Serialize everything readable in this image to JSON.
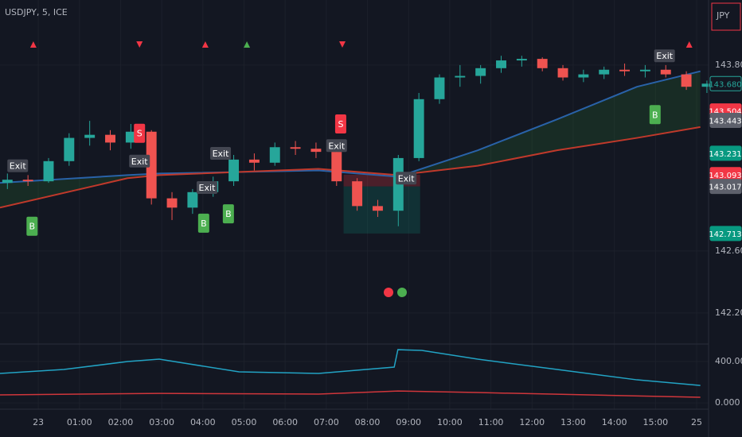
{
  "chart_data": {
    "type": "candlestick",
    "title": "USDJPY, 5, ICE",
    "currency_label": "JPY",
    "up_color": "#26a69a",
    "down_color": "#ef5350",
    "x": [
      -0.75,
      -0.25,
      0.25,
      0.75,
      1.25,
      1.75,
      2.25,
      2.75,
      3.25,
      3.75,
      4.25,
      4.75,
      5.25,
      5.75,
      6.25,
      6.75,
      7.25,
      7.75,
      8.25,
      8.75,
      9.25,
      9.75,
      10.25,
      10.75,
      11.25,
      11.75,
      12.25,
      12.75,
      13.25,
      13.75,
      14.25,
      14.75,
      15.25,
      15.75,
      16.25
    ],
    "open": [
      143.04,
      143.06,
      143.05,
      143.18,
      143.33,
      143.35,
      143.3,
      143.37,
      142.94,
      142.88,
      142.98,
      143.05,
      143.19,
      143.17,
      143.27,
      143.26,
      143.24,
      143.05,
      142.89,
      142.86,
      143.2,
      143.58,
      143.72,
      143.73,
      143.78,
      143.83,
      143.84,
      143.78,
      143.72,
      143.74,
      143.77,
      143.76,
      143.77,
      143.74,
      143.66
    ],
    "high": [
      143.1,
      143.09,
      143.2,
      143.36,
      143.44,
      143.38,
      143.42,
      143.38,
      142.98,
      143.0,
      143.08,
      143.22,
      143.23,
      143.3,
      143.31,
      143.3,
      143.3,
      143.07,
      142.93,
      143.22,
      143.62,
      143.74,
      143.8,
      143.8,
      143.86,
      143.86,
      143.85,
      143.8,
      143.77,
      143.79,
      143.81,
      143.8,
      143.8,
      143.76,
      143.7
    ],
    "low": [
      143.0,
      143.02,
      143.04,
      143.15,
      143.28,
      143.25,
      143.26,
      142.9,
      142.8,
      142.84,
      142.95,
      143.02,
      143.12,
      143.15,
      143.22,
      143.2,
      143.02,
      142.86,
      142.82,
      142.76,
      143.18,
      143.55,
      143.66,
      143.68,
      143.75,
      143.79,
      143.76,
      143.7,
      143.69,
      143.71,
      143.73,
      143.72,
      143.72,
      143.64,
      143.62
    ],
    "close": [
      143.06,
      143.05,
      143.18,
      143.33,
      143.35,
      143.3,
      143.37,
      142.94,
      142.88,
      142.98,
      143.05,
      143.19,
      143.17,
      143.27,
      143.26,
      143.24,
      143.05,
      142.89,
      142.86,
      143.2,
      143.58,
      143.72,
      143.73,
      143.78,
      143.83,
      143.84,
      143.78,
      143.72,
      143.74,
      143.77,
      143.76,
      143.77,
      143.74,
      143.66,
      143.68
    ],
    "xlim": [
      -0.93,
      16.29
    ],
    "xticks": [
      {
        "value": 0,
        "label": "23"
      },
      {
        "value": 1,
        "label": "01:00"
      },
      {
        "value": 2,
        "label": "02:00"
      },
      {
        "value": 3,
        "label": "03:00"
      },
      {
        "value": 4,
        "label": "04:00"
      },
      {
        "value": 5,
        "label": "05:00"
      },
      {
        "value": 6,
        "label": "06:00"
      },
      {
        "value": 7,
        "label": "07:00"
      },
      {
        "value": 8,
        "label": "08:00"
      },
      {
        "value": 9,
        "label": "09:00"
      },
      {
        "value": 10,
        "label": "10:00"
      },
      {
        "value": 11,
        "label": "11:00"
      },
      {
        "value": 12,
        "label": "12:00"
      },
      {
        "value": 13,
        "label": "13:00"
      },
      {
        "value": 14,
        "label": "14:00"
      },
      {
        "value": 15,
        "label": "15:00"
      },
      {
        "value": 16,
        "label": "25"
      }
    ],
    "ylim": [
      142.015,
      144.22
    ],
    "yticks": [
      {
        "value": 143.8,
        "label": "143.800"
      },
      {
        "value": 142.6,
        "label": "142.600"
      },
      {
        "value": 142.2,
        "label": "142.200"
      }
    ],
    "grid": true,
    "price_labels": [
      {
        "value": 143.68,
        "label": "143.680",
        "color": "#26a69a",
        "outline": true
      },
      {
        "value": 143.504,
        "label": "143.504",
        "color": "#f23645",
        "outline": false
      },
      {
        "value": 143.443,
        "label": "143.443",
        "color": "#5d606b",
        "outline": false
      },
      {
        "value": 143.231,
        "label": "143.231",
        "color": "#089981",
        "outline": false
      },
      {
        "value": 143.093,
        "label": "143.093",
        "color": "#f23645",
        "outline": false
      },
      {
        "value": 143.017,
        "label": "143.017",
        "color": "#5d606b",
        "outline": false
      },
      {
        "value": 142.713,
        "label": "142.713",
        "color": "#089981",
        "outline": false
      }
    ],
    "moving_averages": [
      {
        "color": "#2962a8",
        "x": [
          -0.93,
          2.17,
          2.94,
          6.81,
          8.74,
          10.68,
          12.61,
          14.55,
          16.09
        ],
        "values": [
          143.04,
          143.09,
          143.1,
          143.12,
          143.08,
          143.25,
          143.45,
          143.66,
          143.76
        ]
      },
      {
        "color": "#c0392b",
        "x": [
          -0.93,
          2.17,
          2.94,
          6.81,
          8.74,
          10.68,
          12.61,
          14.55,
          16.09
        ],
        "values": [
          142.88,
          143.07,
          143.09,
          143.13,
          143.09,
          143.15,
          143.25,
          143.33,
          143.4
        ]
      }
    ],
    "fill_color": "#2e7d32",
    "signals": [
      {
        "text": "Exit",
        "x": -0.5,
        "y": 143.15,
        "color": "#434651"
      },
      {
        "text": "Exit",
        "x": 2.46,
        "y": 143.18,
        "color": "#434651"
      },
      {
        "text": "Exit",
        "x": 4.1,
        "y": 143.01,
        "color": "#434651"
      },
      {
        "text": "Exit",
        "x": 4.43,
        "y": 143.23,
        "color": "#434651"
      },
      {
        "text": "Exit",
        "x": 7.25,
        "y": 143.28,
        "color": "#434651"
      },
      {
        "text": "Exit",
        "x": 8.94,
        "y": 143.07,
        "color": "#434651"
      },
      {
        "text": "Exit",
        "x": 15.22,
        "y": 143.86,
        "color": "#434651"
      },
      {
        "text": "S",
        "x": 2.46,
        "y": 143.36,
        "color": "#f23645"
      },
      {
        "text": "S",
        "x": 7.35,
        "y": 143.42,
        "color": "#f23645"
      },
      {
        "text": "B",
        "x": -0.15,
        "y": 142.76,
        "color": "#4caf50"
      },
      {
        "text": "B",
        "x": 4.02,
        "y": 142.78,
        "color": "#4caf50"
      },
      {
        "text": "B",
        "x": 4.62,
        "y": 142.84,
        "color": "#4caf50"
      },
      {
        "text": "B",
        "x": 14.99,
        "y": 143.48,
        "color": "#4caf50"
      }
    ],
    "top_markers": [
      {
        "x": -0.12,
        "shape": "up",
        "color": "#f23645"
      },
      {
        "x": 2.46,
        "shape": "down",
        "color": "#f23645"
      },
      {
        "x": 4.06,
        "shape": "up",
        "color": "#f23645"
      },
      {
        "x": 5.07,
        "shape": "up",
        "color": "#4caf50"
      },
      {
        "x": 7.39,
        "shape": "down",
        "color": "#f23645"
      },
      {
        "x": 15.82,
        "shape": "up",
        "color": "#f23645"
      }
    ],
    "position": {
      "x_start": 7.42,
      "x_end": 9.28,
      "stop": 143.093,
      "entry": 143.017,
      "target": 142.713
    },
    "indicator": {
      "ylim": [
        -61,
        554
      ],
      "yticks": [
        {
          "value": 400,
          "label": "400.000"
        },
        {
          "value": 0,
          "label": "0.000"
        }
      ],
      "lines": [
        {
          "color": "#22a3c4",
          "x": [
            -0.93,
            0.62,
            2.17,
            2.94,
            4.88,
            6.81,
            8.65,
            8.74,
            9.32,
            10.68,
            12.61,
            14.55,
            16.09
          ],
          "values": [
            285,
            323,
            400,
            423,
            300,
            285,
            346,
            515,
            508,
            423,
            323,
            223,
            169
          ]
        },
        {
          "color": "#d0363b",
          "x": [
            -0.93,
            2.94,
            6.81,
            8.74,
            10.68,
            16.09
          ],
          "values": [
            77,
            92,
            85,
            115,
            100,
            54
          ]
        }
      ]
    }
  }
}
